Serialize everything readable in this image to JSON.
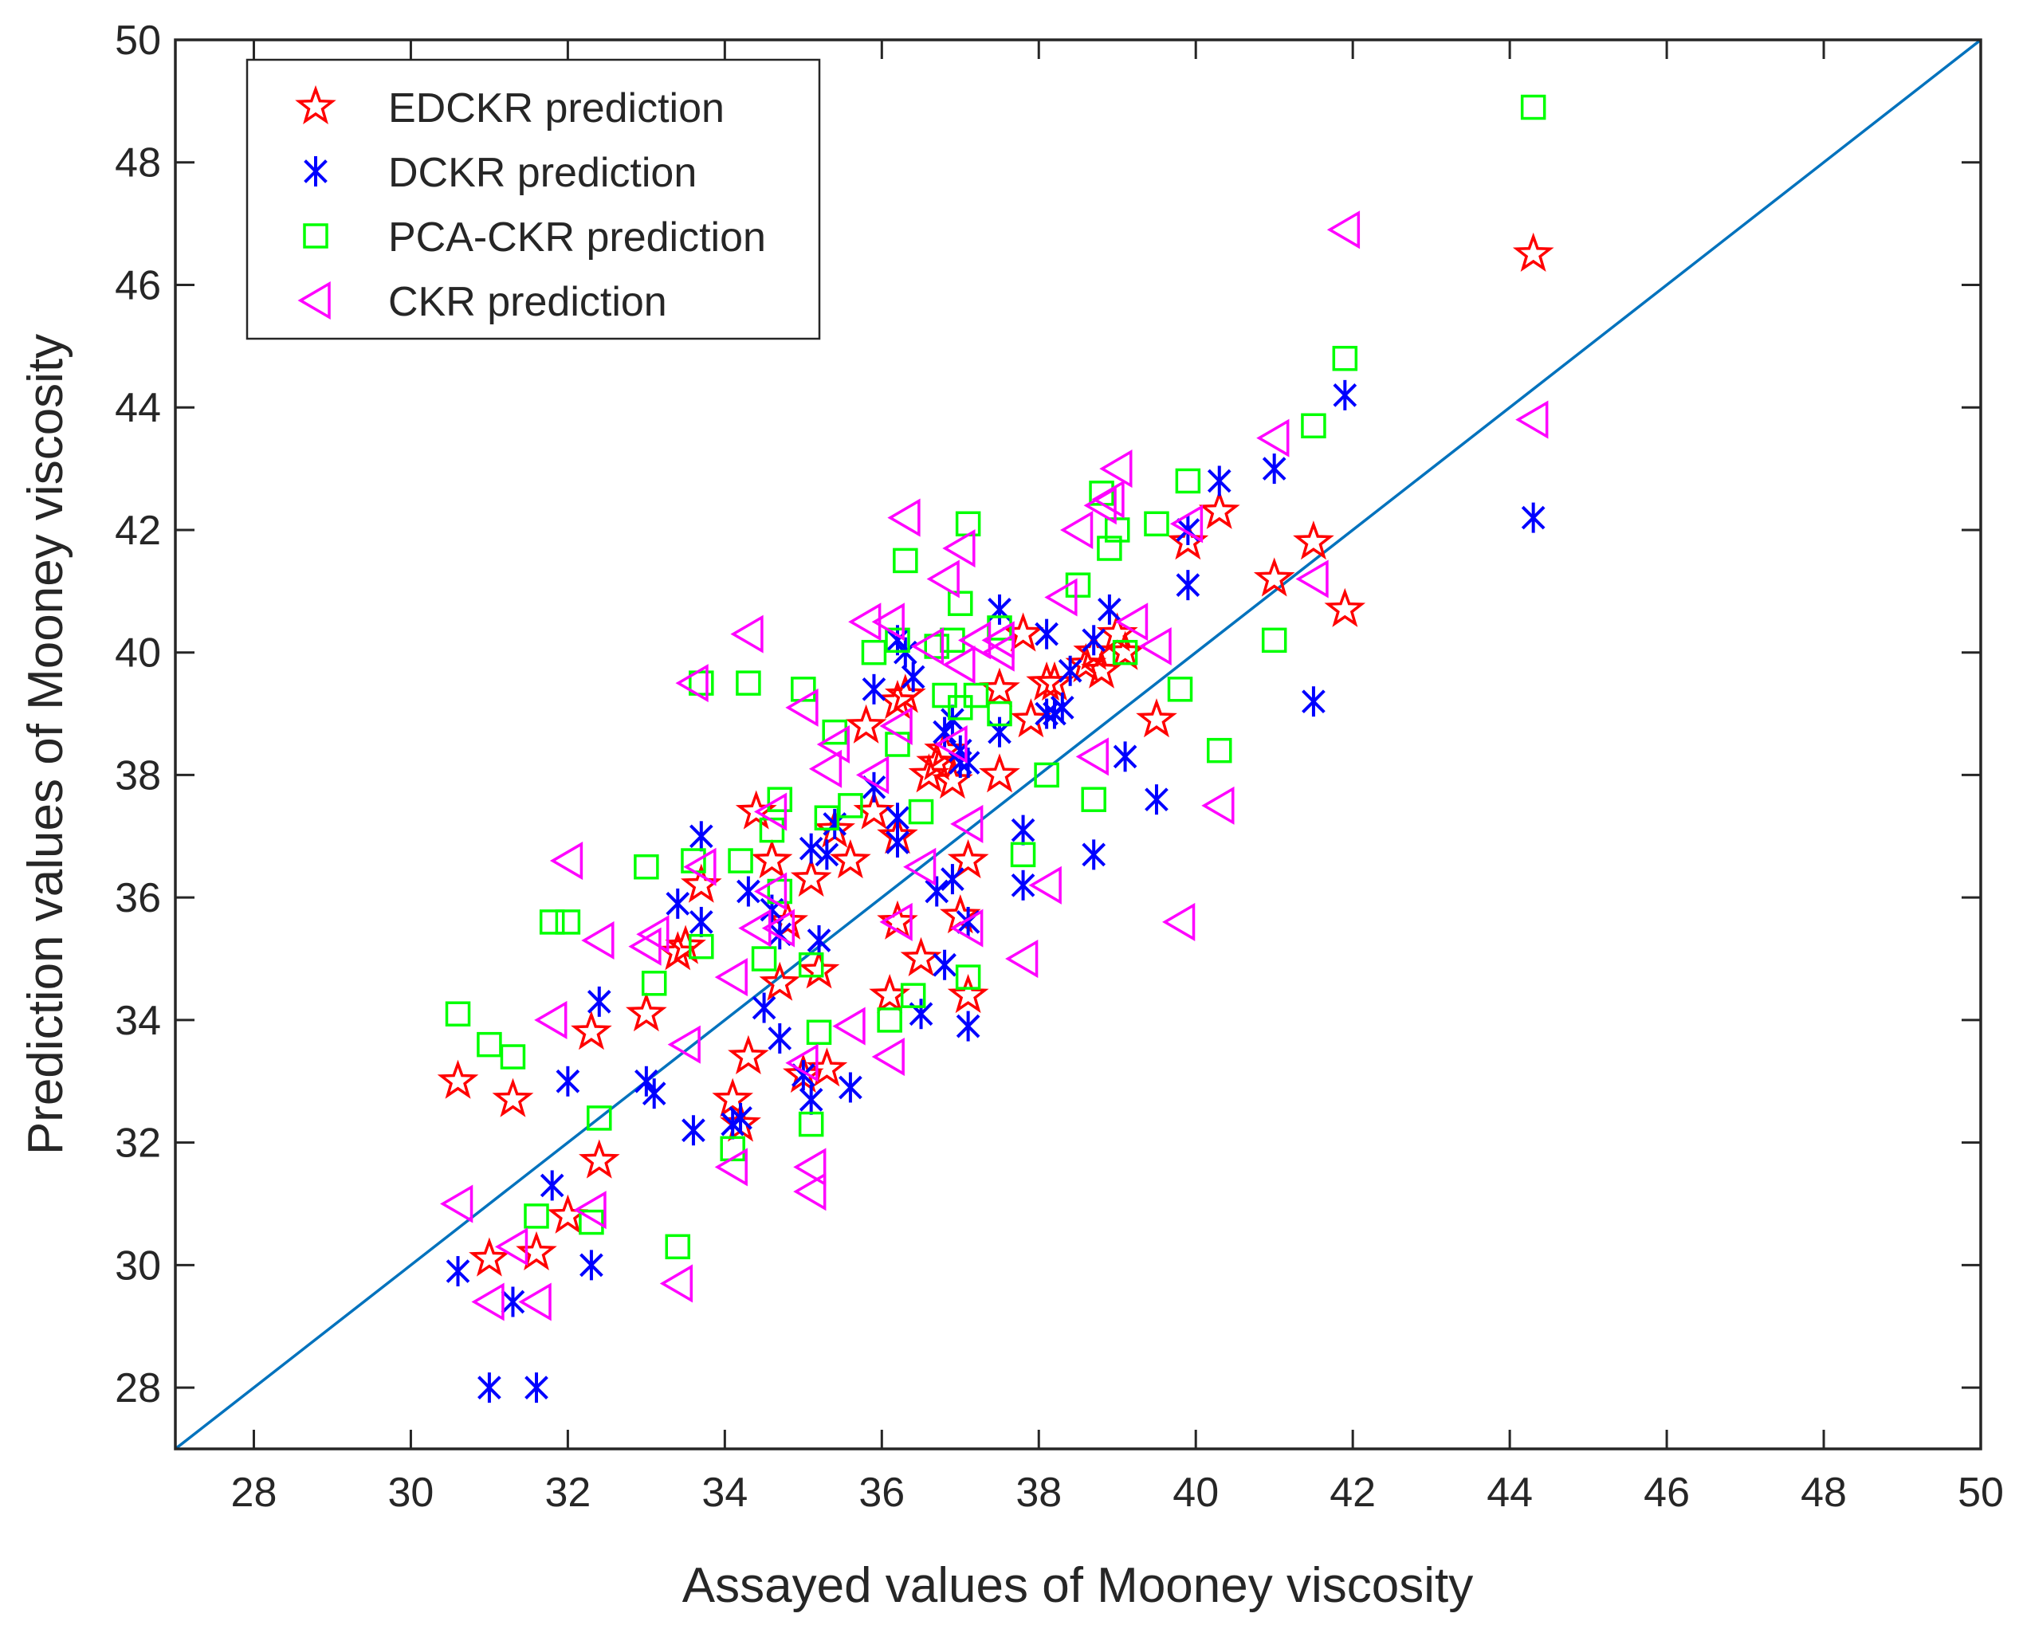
{
  "chart_data": {
    "type": "scatter",
    "title": "",
    "xlabel": "Assayed values of Mooney viscosity",
    "ylabel": "Prediction values of Mooney viscosity",
    "xlim": [
      27,
      50
    ],
    "ylim": [
      27,
      50
    ],
    "xticks": [
      28,
      30,
      32,
      34,
      36,
      38,
      40,
      42,
      44,
      46,
      48,
      50
    ],
    "yticks": [
      28,
      30,
      32,
      34,
      36,
      38,
      40,
      42,
      44,
      46,
      48,
      50
    ],
    "xtick_labels": [
      "28",
      "30",
      "32",
      "34",
      "36",
      "38",
      "40",
      "42",
      "44",
      "46",
      "48",
      "50"
    ],
    "ytick_labels": [
      "28",
      "30",
      "32",
      "34",
      "36",
      "38",
      "40",
      "42",
      "44",
      "46",
      "48",
      "50"
    ],
    "grid": false,
    "legend_position": "top-left",
    "reference_line": {
      "from": [
        27,
        27
      ],
      "to": [
        50,
        50
      ],
      "color": "#0072BD"
    },
    "series": [
      {
        "name": "EDCKR prediction",
        "marker": "star",
        "color": "#FF0000",
        "points": [
          [
            30.6,
            33.0
          ],
          [
            31.0,
            30.1
          ],
          [
            31.3,
            32.7
          ],
          [
            31.6,
            30.2
          ],
          [
            32.0,
            30.8
          ],
          [
            32.3,
            33.8
          ],
          [
            32.4,
            31.7
          ],
          [
            33.0,
            34.1
          ],
          [
            33.4,
            35.1
          ],
          [
            33.5,
            35.2
          ],
          [
            33.7,
            36.2
          ],
          [
            34.1,
            32.7
          ],
          [
            34.2,
            32.3
          ],
          [
            34.3,
            33.4
          ],
          [
            34.4,
            37.4
          ],
          [
            34.6,
            36.6
          ],
          [
            34.7,
            34.6
          ],
          [
            34.8,
            35.6
          ],
          [
            35.0,
            33.1
          ],
          [
            35.1,
            36.3
          ],
          [
            35.2,
            34.8
          ],
          [
            35.3,
            33.2
          ],
          [
            35.4,
            37.1
          ],
          [
            35.6,
            36.6
          ],
          [
            35.8,
            38.8
          ],
          [
            35.9,
            37.4
          ],
          [
            36.1,
            34.4
          ],
          [
            36.2,
            35.6
          ],
          [
            36.2,
            37.0
          ],
          [
            36.2,
            39.2
          ],
          [
            36.3,
            39.3
          ],
          [
            36.5,
            35.0
          ],
          [
            36.6,
            38.0
          ],
          [
            36.7,
            38.2
          ],
          [
            36.8,
            38.4
          ],
          [
            36.9,
            37.9
          ],
          [
            37.0,
            35.7
          ],
          [
            37.1,
            36.6
          ],
          [
            37.1,
            34.4
          ],
          [
            37.5,
            39.4
          ],
          [
            37.5,
            38.0
          ],
          [
            37.8,
            40.3
          ],
          [
            37.9,
            38.9
          ],
          [
            38.1,
            39.5
          ],
          [
            38.2,
            39.5
          ],
          [
            38.6,
            39.8
          ],
          [
            38.7,
            40.0
          ],
          [
            38.8,
            39.7
          ],
          [
            39.0,
            40.3
          ],
          [
            39.1,
            40.0
          ],
          [
            39.5,
            38.9
          ],
          [
            39.9,
            41.8
          ],
          [
            40.3,
            42.3
          ],
          [
            41.0,
            41.2
          ],
          [
            41.5,
            41.8
          ],
          [
            41.9,
            40.7
          ],
          [
            44.3,
            46.5
          ]
        ]
      },
      {
        "name": "DCKR prediction",
        "marker": "asterisk",
        "color": "#0000FF",
        "points": [
          [
            30.6,
            29.9
          ],
          [
            31.0,
            28.0
          ],
          [
            31.3,
            29.4
          ],
          [
            31.6,
            28.0
          ],
          [
            31.8,
            31.3
          ],
          [
            32.0,
            33.0
          ],
          [
            32.3,
            30.0
          ],
          [
            32.4,
            34.3
          ],
          [
            33.0,
            33.0
          ],
          [
            33.1,
            32.8
          ],
          [
            33.4,
            35.9
          ],
          [
            33.6,
            32.2
          ],
          [
            33.7,
            37.0
          ],
          [
            33.7,
            35.6
          ],
          [
            34.1,
            32.3
          ],
          [
            34.2,
            32.4
          ],
          [
            34.3,
            36.1
          ],
          [
            34.5,
            34.2
          ],
          [
            34.6,
            35.8
          ],
          [
            34.7,
            33.7
          ],
          [
            34.7,
            35.4
          ],
          [
            35.0,
            33.1
          ],
          [
            35.1,
            32.7
          ],
          [
            35.1,
            36.8
          ],
          [
            35.2,
            35.3
          ],
          [
            35.3,
            36.7
          ],
          [
            35.4,
            37.2
          ],
          [
            35.6,
            32.9
          ],
          [
            35.9,
            37.8
          ],
          [
            35.9,
            39.4
          ],
          [
            36.2,
            40.2
          ],
          [
            36.2,
            36.9
          ],
          [
            36.2,
            37.3
          ],
          [
            36.3,
            40.0
          ],
          [
            36.4,
            39.6
          ],
          [
            36.5,
            34.1
          ],
          [
            36.7,
            36.1
          ],
          [
            36.8,
            38.7
          ],
          [
            36.8,
            34.9
          ],
          [
            36.9,
            38.9
          ],
          [
            36.9,
            36.3
          ],
          [
            37.0,
            38.2
          ],
          [
            37.0,
            38.4
          ],
          [
            37.1,
            35.6
          ],
          [
            37.1,
            33.9
          ],
          [
            37.1,
            38.2
          ],
          [
            37.5,
            40.7
          ],
          [
            37.5,
            38.7
          ],
          [
            37.8,
            37.1
          ],
          [
            37.8,
            36.2
          ],
          [
            38.1,
            40.3
          ],
          [
            38.1,
            39.0
          ],
          [
            38.2,
            39.0
          ],
          [
            38.3,
            39.1
          ],
          [
            38.4,
            39.7
          ],
          [
            38.7,
            36.7
          ],
          [
            38.7,
            40.2
          ],
          [
            38.9,
            40.7
          ],
          [
            39.1,
            38.3
          ],
          [
            39.5,
            37.6
          ],
          [
            39.9,
            41.1
          ],
          [
            39.9,
            42.0
          ],
          [
            40.3,
            42.8
          ],
          [
            41.0,
            43.0
          ],
          [
            41.5,
            39.2
          ],
          [
            41.9,
            44.2
          ],
          [
            44.3,
            42.2
          ]
        ]
      },
      {
        "name": "PCA-CKR prediction",
        "marker": "square",
        "color": "#00FF00",
        "points": [
          [
            30.6,
            34.1
          ],
          [
            31.0,
            33.6
          ],
          [
            31.3,
            33.4
          ],
          [
            31.6,
            30.8
          ],
          [
            31.8,
            35.6
          ],
          [
            32.0,
            35.6
          ],
          [
            32.3,
            30.7
          ],
          [
            32.4,
            32.4
          ],
          [
            33.0,
            36.5
          ],
          [
            33.1,
            34.6
          ],
          [
            33.4,
            30.3
          ],
          [
            33.6,
            36.6
          ],
          [
            33.7,
            39.5
          ],
          [
            33.7,
            35.2
          ],
          [
            34.1,
            31.9
          ],
          [
            34.2,
            36.6
          ],
          [
            34.3,
            39.5
          ],
          [
            34.5,
            35.0
          ],
          [
            34.6,
            37.1
          ],
          [
            34.7,
            36.1
          ],
          [
            34.7,
            37.6
          ],
          [
            35.0,
            39.4
          ],
          [
            35.1,
            32.3
          ],
          [
            35.1,
            34.9
          ],
          [
            35.2,
            33.8
          ],
          [
            35.3,
            37.3
          ],
          [
            35.4,
            38.7
          ],
          [
            35.6,
            37.5
          ],
          [
            35.9,
            40.0
          ],
          [
            36.1,
            34.0
          ],
          [
            36.2,
            40.2
          ],
          [
            36.2,
            38.5
          ],
          [
            36.3,
            41.5
          ],
          [
            36.4,
            34.4
          ],
          [
            36.5,
            37.4
          ],
          [
            36.7,
            40.1
          ],
          [
            36.8,
            39.3
          ],
          [
            36.9,
            40.2
          ],
          [
            37.0,
            39.1
          ],
          [
            37.0,
            40.8
          ],
          [
            37.1,
            42.1
          ],
          [
            37.1,
            34.7
          ],
          [
            37.2,
            39.3
          ],
          [
            37.5,
            39.0
          ],
          [
            37.5,
            40.4
          ],
          [
            37.8,
            36.7
          ],
          [
            38.1,
            38.0
          ],
          [
            38.5,
            41.1
          ],
          [
            38.7,
            37.6
          ],
          [
            38.8,
            42.6
          ],
          [
            38.9,
            41.7
          ],
          [
            39.0,
            42.0
          ],
          [
            39.1,
            40.0
          ],
          [
            39.5,
            42.1
          ],
          [
            39.8,
            39.4
          ],
          [
            39.9,
            42.8
          ],
          [
            40.3,
            38.4
          ],
          [
            41.0,
            40.2
          ],
          [
            41.5,
            43.7
          ],
          [
            41.9,
            44.8
          ],
          [
            44.3,
            48.9
          ]
        ]
      },
      {
        "name": "CKR prediction",
        "marker": "triangle-left",
        "color": "#FF00FF",
        "points": [
          [
            30.6,
            31.0
          ],
          [
            31.0,
            29.4
          ],
          [
            31.3,
            30.3
          ],
          [
            31.6,
            29.4
          ],
          [
            31.8,
            34.0
          ],
          [
            32.0,
            36.6
          ],
          [
            32.3,
            30.9
          ],
          [
            32.4,
            35.3
          ],
          [
            33.0,
            35.2
          ],
          [
            33.1,
            35.4
          ],
          [
            33.4,
            29.7
          ],
          [
            33.5,
            33.6
          ],
          [
            33.6,
            39.5
          ],
          [
            33.7,
            36.5
          ],
          [
            34.1,
            31.6
          ],
          [
            34.1,
            34.7
          ],
          [
            34.3,
            40.3
          ],
          [
            34.4,
            35.5
          ],
          [
            34.6,
            37.4
          ],
          [
            34.6,
            36.1
          ],
          [
            34.7,
            35.5
          ],
          [
            35.0,
            39.1
          ],
          [
            35.0,
            33.3
          ],
          [
            35.1,
            31.6
          ],
          [
            35.1,
            31.2
          ],
          [
            35.3,
            38.1
          ],
          [
            35.4,
            38.5
          ],
          [
            35.6,
            33.9
          ],
          [
            35.8,
            40.5
          ],
          [
            35.9,
            38.0
          ],
          [
            36.1,
            40.5
          ],
          [
            36.1,
            33.4
          ],
          [
            36.2,
            38.8
          ],
          [
            36.2,
            35.6
          ],
          [
            36.3,
            42.2
          ],
          [
            36.5,
            36.5
          ],
          [
            36.6,
            40.1
          ],
          [
            36.8,
            41.2
          ],
          [
            36.9,
            38.5
          ],
          [
            37.0,
            39.8
          ],
          [
            37.0,
            41.7
          ],
          [
            37.1,
            37.2
          ],
          [
            37.1,
            35.5
          ],
          [
            37.2,
            40.2
          ],
          [
            37.5,
            40.0
          ],
          [
            37.5,
            40.2
          ],
          [
            37.8,
            35.0
          ],
          [
            38.1,
            36.2
          ],
          [
            38.3,
            40.9
          ],
          [
            38.5,
            42.0
          ],
          [
            38.7,
            38.3
          ],
          [
            38.8,
            42.4
          ],
          [
            38.9,
            42.5
          ],
          [
            39.0,
            43.0
          ],
          [
            39.2,
            40.5
          ],
          [
            39.5,
            40.1
          ],
          [
            39.8,
            35.6
          ],
          [
            39.9,
            42.1
          ],
          [
            40.3,
            37.5
          ],
          [
            41.0,
            43.5
          ],
          [
            41.5,
            41.2
          ],
          [
            41.9,
            46.9
          ],
          [
            44.3,
            43.8
          ]
        ]
      }
    ]
  }
}
